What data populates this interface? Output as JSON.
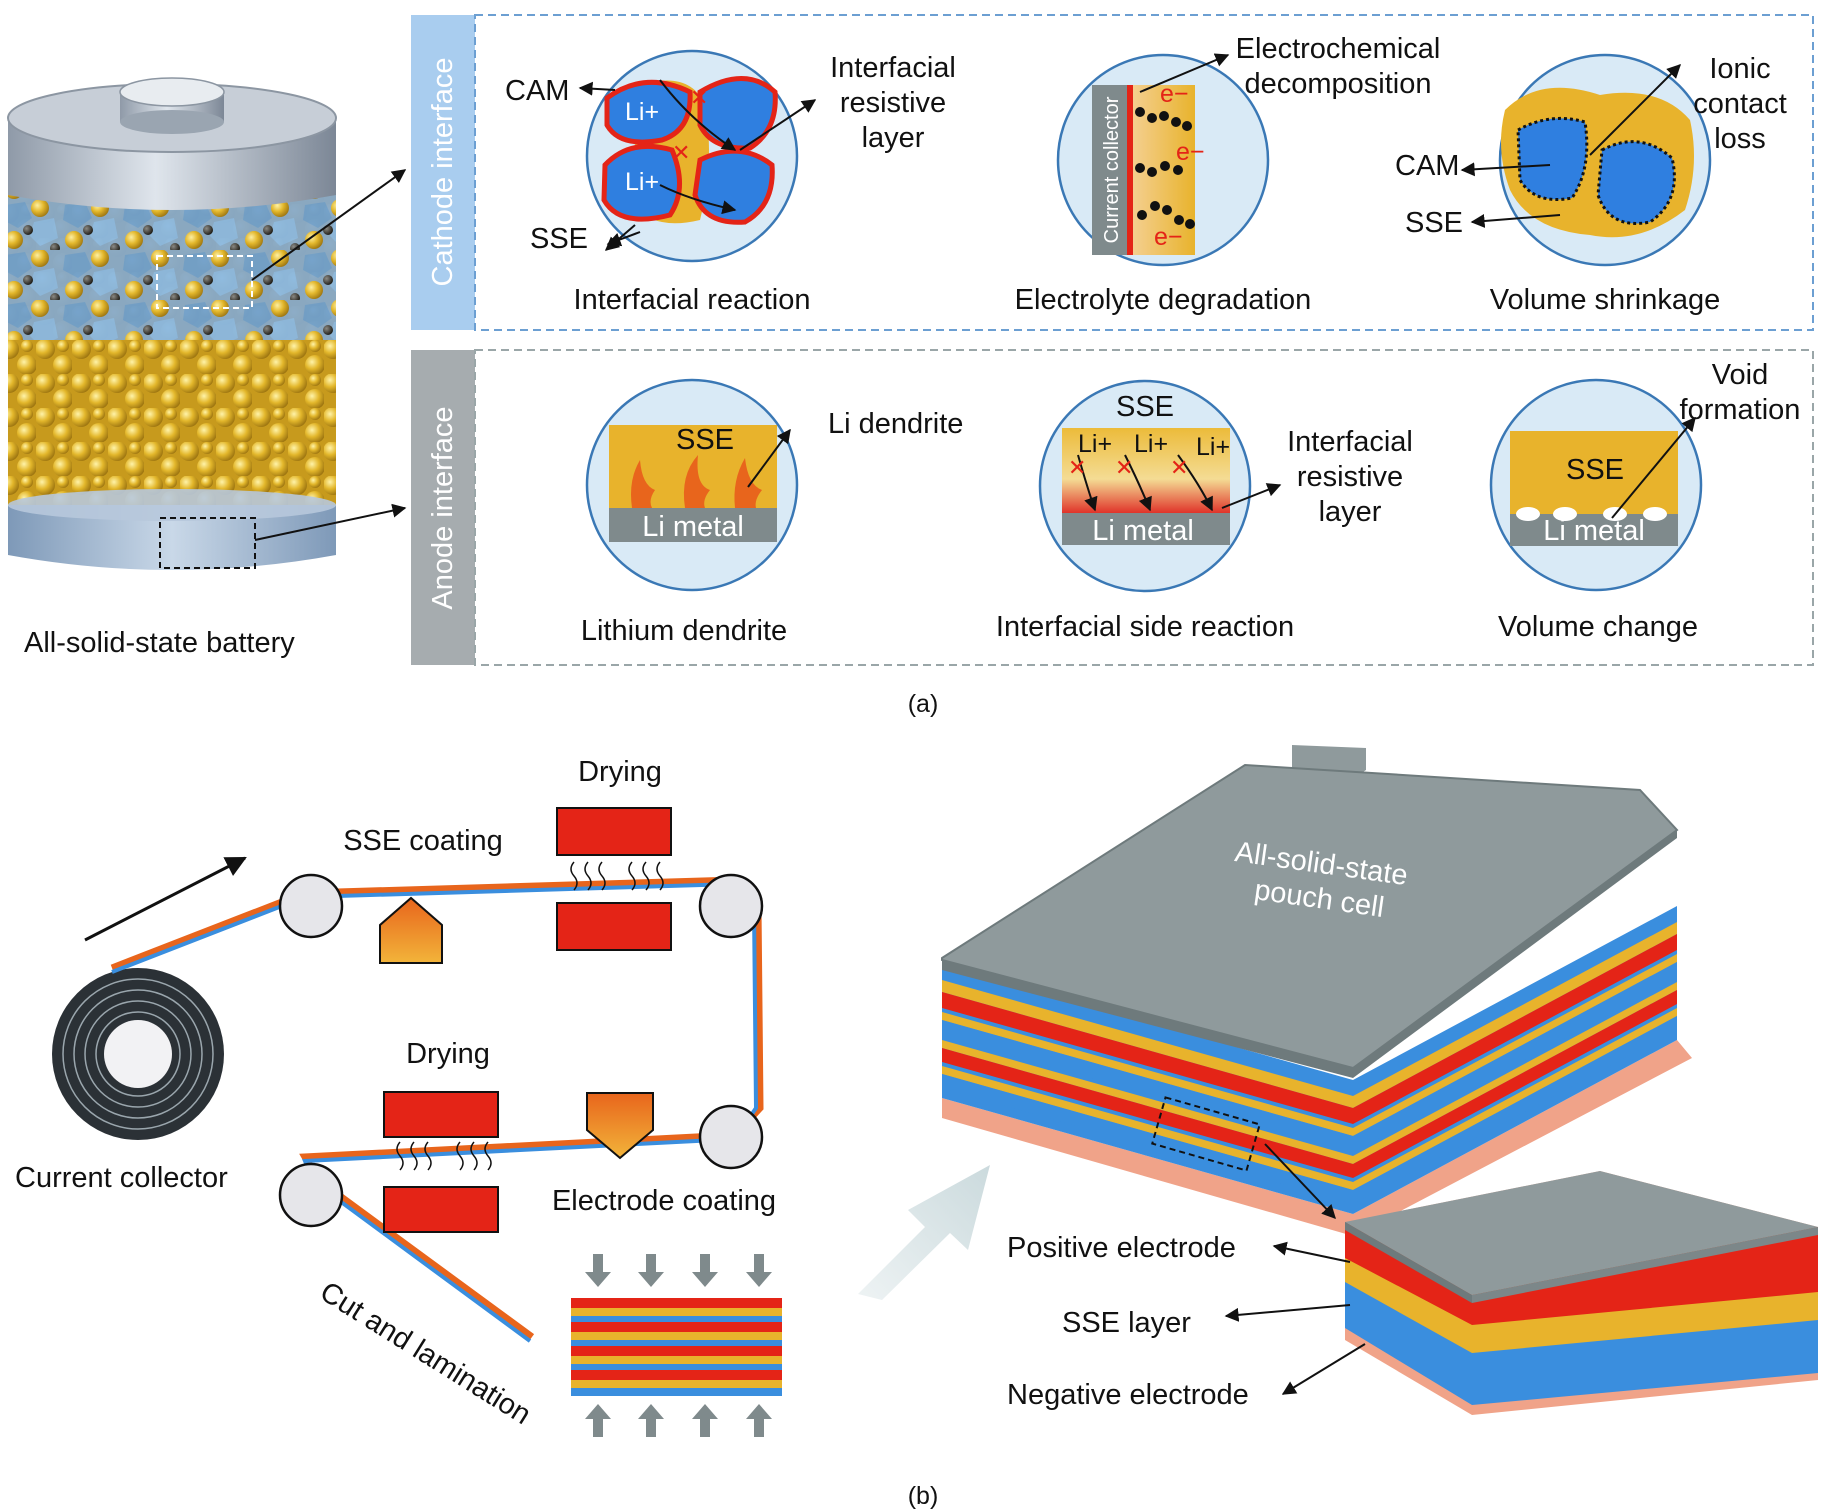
{
  "battery": {
    "label": "All-solid-state battery"
  },
  "panel_a": {
    "caption": "(a)",
    "cathode_title": "Cathode interface",
    "anode_title": "Anode interface",
    "reaction": {
      "caption": "Interfacial reaction",
      "cam": "CAM",
      "sse": "SSE",
      "ion": "Li+",
      "layer": [
        "Interfacial",
        "resistive",
        "layer"
      ]
    },
    "degradation": {
      "caption": "Electrolyte degradation",
      "collector": "Current collector",
      "electron": "e−",
      "label": [
        "Electrochemical",
        "decomposition"
      ]
    },
    "shrinkage": {
      "caption": "Volume shrinkage",
      "cam": "CAM",
      "sse": "SSE",
      "label": [
        "Ionic",
        "contact",
        "loss"
      ]
    },
    "dendrite": {
      "caption": "Lithium dendrite",
      "sse": "SSE",
      "metal": "Li metal",
      "label": "Li dendrite"
    },
    "side": {
      "caption": "Interfacial side reaction",
      "sse": "SSE",
      "metal": "Li metal",
      "ion": "Li+",
      "label": [
        "Interfacial",
        "resistive",
        "layer"
      ]
    },
    "volume": {
      "caption": "Volume change",
      "sse": "SSE",
      "metal": "Li metal",
      "label": [
        "Void",
        "formation"
      ]
    }
  },
  "panel_b": {
    "caption": "(b)",
    "collector": "Current collector",
    "sse_coating": "SSE coating",
    "drying": "Drying",
    "electrode_coating": "Electrode coating",
    "cut": "Cut and lamination",
    "pouch": [
      "All-solid-state",
      "pouch cell"
    ],
    "positive": "Positive electrode",
    "sse_layer": "SSE layer",
    "negative": "Negative electrode"
  },
  "colors": {
    "panel_blue": "#a9cdef",
    "panel_gray": "#a6acaf",
    "sse_yellow": "#e8b32c",
    "cam_blue": "#2f7fe0",
    "red": "#e42417",
    "electrode_blue": "#3a8ede",
    "metal_gray": "#7f8a8c",
    "bubble": "#d9eaf6"
  }
}
